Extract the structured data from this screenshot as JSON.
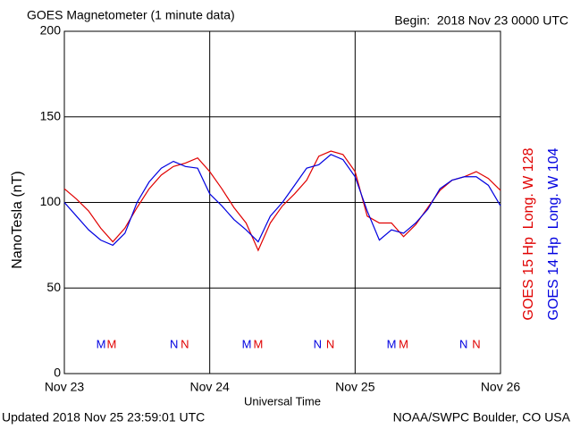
{
  "chart_data": {
    "type": "line",
    "title": "GOES Magnetometer (1 minute data)",
    "subtitle": "Begin:  2018 Nov 23 0000 UTC",
    "ylabel": "NanoTesla (nT)",
    "xlabel": "Universal Time",
    "footer_left": "Updated 2018 Nov 25 23:59:01 UTC",
    "footer_right": "NOAA/SWPC Boulder, CO USA",
    "grid": true,
    "xlim": [
      0,
      72
    ],
    "xticks": [
      {
        "value": 0,
        "label": "Nov 23"
      },
      {
        "value": 24,
        "label": "Nov 24"
      },
      {
        "value": 48,
        "label": "Nov 25"
      },
      {
        "value": 72,
        "label": "Nov 26"
      }
    ],
    "ylim": [
      0,
      200
    ],
    "yticks": [
      0,
      50,
      100,
      150,
      200
    ],
    "x": [
      0,
      2,
      4,
      6,
      8,
      10,
      12,
      14,
      16,
      18,
      20,
      22,
      24,
      26,
      28,
      30,
      32,
      34,
      36,
      38,
      40,
      42,
      44,
      46,
      48,
      50,
      52,
      54,
      56,
      58,
      60,
      62,
      64,
      66,
      68,
      70,
      72
    ],
    "series": [
      {
        "name": "GOES 15 Hp  Long. W 128",
        "color": "#e00000",
        "values": [
          108,
          102,
          95,
          85,
          77,
          85,
          97,
          108,
          116,
          121,
          123,
          126,
          118,
          108,
          97,
          88,
          72,
          88,
          98,
          105,
          113,
          127,
          130,
          128,
          118,
          92,
          88,
          88,
          80,
          87,
          97,
          107,
          113,
          115,
          118,
          114,
          107
        ],
        "markers": [
          {
            "label": "M",
            "x": 7.8
          },
          {
            "label": "N",
            "x": 19.9
          },
          {
            "label": "M",
            "x": 32.0
          },
          {
            "label": "N",
            "x": 43.9
          },
          {
            "label": "M",
            "x": 56.0
          },
          {
            "label": "N",
            "x": 68.0
          }
        ]
      },
      {
        "name": "GOES 14 Hp  Long. W 104",
        "color": "#0000e0",
        "values": [
          100,
          92,
          84,
          78,
          75,
          82,
          100,
          112,
          120,
          124,
          121,
          120,
          105,
          98,
          90,
          84,
          77,
          92,
          100,
          110,
          120,
          122,
          128,
          125,
          115,
          95,
          78,
          84,
          82,
          88,
          96,
          108,
          113,
          115,
          115,
          110,
          98
        ],
        "markers": [
          {
            "label": "M",
            "x": 6.05
          },
          {
            "label": "N",
            "x": 18.1
          },
          {
            "label": "M",
            "x": 30.1
          },
          {
            "label": "N",
            "x": 41.8
          },
          {
            "label": "M",
            "x": 54.0
          },
          {
            "label": "N",
            "x": 65.9
          }
        ]
      }
    ]
  }
}
